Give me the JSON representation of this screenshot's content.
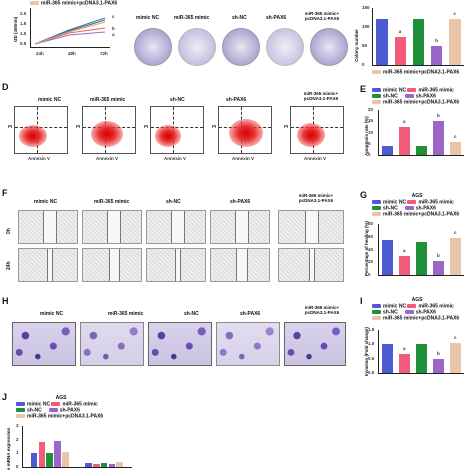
{
  "panels": {
    "B_legend": [
      "miR-365 mimic+pcDNA3.1-PAX6"
    ],
    "B_xticks": [
      "24h",
      "48h",
      "72h"
    ],
    "B_ylabel": "OD (450nm)",
    "B_yticks": [
      "0.5",
      "1.0",
      "1.5",
      "2.0"
    ],
    "B_letters": [
      "c",
      "b",
      "a"
    ],
    "colony_labels": [
      "mimic NC",
      "miR-365 mimic",
      "sh-NC",
      "sh-PAX6",
      "miR-365 mimic+\npcDNA3.1-PAX6"
    ],
    "colony_ylabel": "Colony number",
    "colony_yticks": [
      "0",
      "50",
      "100",
      "150"
    ],
    "letters_C": [
      "a",
      "b",
      "c"
    ],
    "D_label": "D",
    "E_label": "E",
    "flow_titles": [
      "mimic NC",
      "miR-365 mimic",
      "sh-NC",
      "sh-PAX6",
      "miR-365 mimic+\npcDNA3.1-PAX6"
    ],
    "flow_axis_y": "PI",
    "flow_axis_x": "Annexin V",
    "E_ylabel": "Apoptosis rate (%)",
    "E_yticks": [
      "0",
      "5",
      "10",
      "15",
      "20"
    ],
    "letters_E": [
      "a",
      "b",
      "c"
    ],
    "F_label": "F",
    "G_label": "G",
    "wound_titles": [
      "mimic NC",
      "miR-365 mimic",
      "sh-NC",
      "sh-PAX6",
      "miR-365 mimic+\npcDNA3.1-PAX6"
    ],
    "wound_rows": [
      "0h",
      "24h"
    ],
    "G_ylabel": "Percentage of healing (%)",
    "G_yticks": [
      "0",
      "20",
      "40",
      "60",
      "80"
    ],
    "letters_G": [
      "a",
      "b",
      "c"
    ],
    "H_label": "H",
    "I_label": "I",
    "inv_titles": [
      "mimic NC",
      "miR-365 mimic",
      "sh-NC",
      "sh-PAX6",
      "miR-365 mimic+\npcDNA3.1-PAX6"
    ],
    "I_ylabel": "Invasion (Fold change)",
    "I_yticks": [
      "0.0",
      "0.5",
      "1.0",
      "1.5"
    ],
    "letters_I": [
      "a",
      "b",
      "c"
    ],
    "J_label": "J",
    "J_ylabel": "e mRNA expression",
    "J_yticks": [
      "0",
      "1",
      "2",
      "3"
    ],
    "letters_J": [
      "a",
      "b",
      "c"
    ]
  },
  "legend_AGS": {
    "title": "AGS",
    "items": [
      "mimic NC",
      "miR-365 mimic",
      "sh-NC",
      "sh-PAX6",
      "miR-365 mimic+pcDNA3.1-PAX6"
    ]
  },
  "colors": {
    "mimic_nc": "#4c5bd4",
    "mir365": "#f25c7a",
    "sh_nc": "#1f8f3a",
    "sh_pax6": "#9a67c9",
    "rescue": "#e9c6a9"
  },
  "chart_data": [
    {
      "panel": "C",
      "type": "bar",
      "ylabel": "Colony number",
      "ylim": [
        0,
        150
      ],
      "categories": [
        "mimic NC",
        "miR-365 mimic",
        "sh-NC",
        "sh-PAX6",
        "miR-365 mimic+pcDNA3.1-PAX6"
      ],
      "values": [
        120,
        75,
        120,
        50,
        120
      ]
    },
    {
      "panel": "E",
      "type": "bar",
      "ylabel": "Apoptosis rate (%)",
      "ylim": [
        0,
        20
      ],
      "categories": [
        "mimic NC",
        "miR-365 mimic",
        "sh-NC",
        "sh-PAX6",
        "miR-365 mimic+pcDNA3.1-PAX6"
      ],
      "values": [
        4,
        12.5,
        4,
        15,
        6
      ]
    },
    {
      "panel": "G",
      "type": "bar",
      "ylabel": "Percentage of healing (%)",
      "ylim": [
        0,
        80
      ],
      "categories": [
        "mimic NC",
        "miR-365 mimic",
        "sh-NC",
        "sh-PAX6",
        "miR-365 mimic+pcDNA3.1-PAX6"
      ],
      "values": [
        55,
        30,
        52,
        22,
        58
      ]
    },
    {
      "panel": "I",
      "type": "bar",
      "ylabel": "Invasion (Fold change)",
      "ylim": [
        0,
        1.5
      ],
      "categories": [
        "mimic NC",
        "miR-365 mimic",
        "sh-NC",
        "sh-PAX6",
        "miR-365 mimic+pcDNA3.1-PAX6"
      ],
      "values": [
        1.0,
        0.65,
        1.0,
        0.5,
        1.05
      ]
    },
    {
      "panel": "J",
      "type": "bar",
      "ylabel": "e mRNA expression",
      "ylim": [
        0,
        3
      ],
      "series": [
        {
          "name": "mimic NC",
          "values": [
            1.0,
            0.3
          ]
        },
        {
          "name": "miR-365 mimic",
          "values": [
            1.8,
            0.2
          ]
        },
        {
          "name": "sh-NC",
          "values": [
            1.0,
            0.3
          ]
        },
        {
          "name": "sh-PAX6",
          "values": [
            1.9,
            0.2
          ]
        },
        {
          "name": "miR-365 mimic+pcDNA3.1-PAX6",
          "values": [
            1.1,
            0.4
          ]
        }
      ]
    }
  ]
}
